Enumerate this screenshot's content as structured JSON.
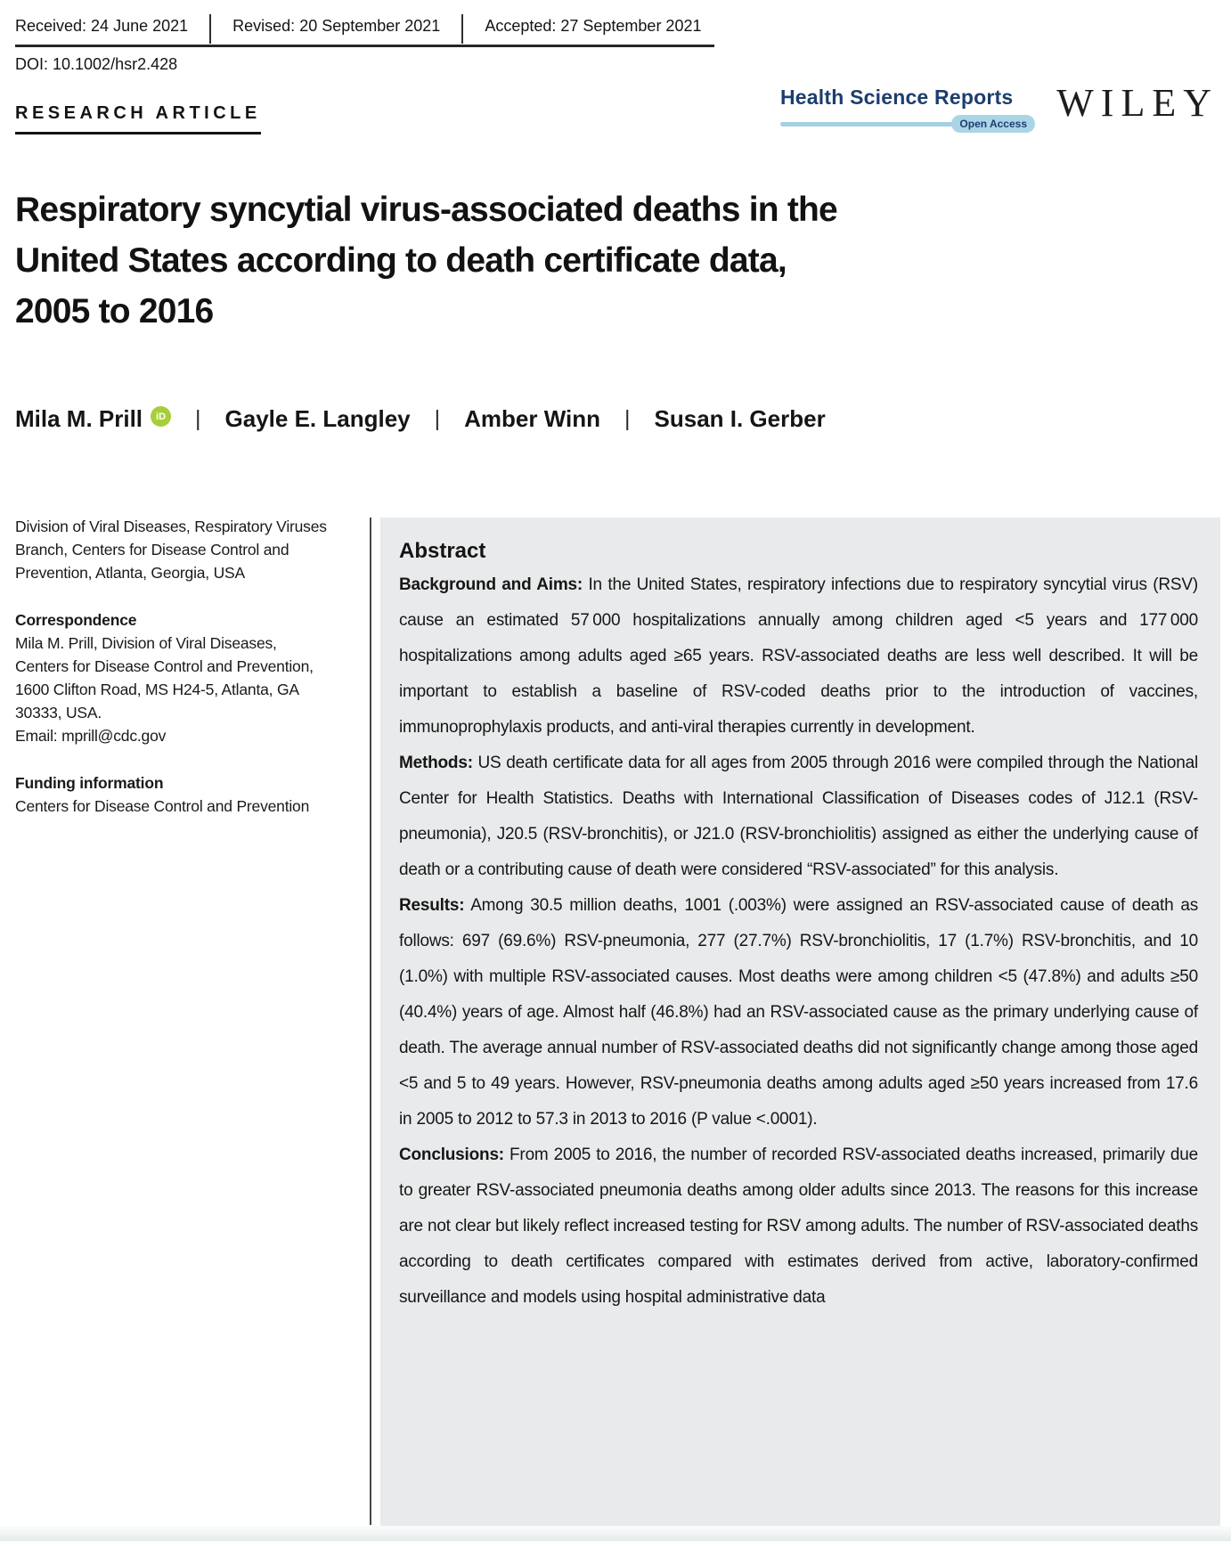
{
  "meta": {
    "dates": [
      "Received: 24 June 2021",
      "Revised: 20 September 2021",
      "Accepted: 27 September 2021"
    ],
    "doi": "DOI: 10.1002/hsr2.428"
  },
  "journal": {
    "name": "Health Science Reports",
    "open_access_label": "Open Access",
    "publisher": "WILEY"
  },
  "article": {
    "kicker": "RESEARCH ARTICLE",
    "title_lines": [
      "Respiratory syncytial virus-associated deaths in the",
      "United States according to death certificate data,",
      "2005 to 2016"
    ],
    "authors": [
      {
        "name": "Mila M. Prill",
        "orcid": true
      },
      {
        "name": "Gayle E. Langley"
      },
      {
        "name": "Amber Winn"
      },
      {
        "name": "Susan I. Gerber"
      }
    ],
    "author_separator": "|",
    "orcid_icon_text": "iD"
  },
  "sidebar": {
    "affiliation": "Division of Viral Diseases, Respiratory Viruses Branch, Centers for Disease Control and Prevention, Atlanta, Georgia, USA",
    "correspondence_heading": "Correspondence",
    "correspondence": "Mila M. Prill, Division of Viral Diseases, Centers for Disease Control and Prevention, 1600 Clifton Road, MS H24-5, Atlanta, GA 30333, USA.",
    "email": "Email: mprill@cdc.gov",
    "funding_heading": "Funding information",
    "funding": "Centers for Disease Control and Prevention"
  },
  "abstract": {
    "heading": "Abstract",
    "paragraphs": [
      {
        "label": "Background and Aims:",
        "text": "In the United States, respiratory infections due to respiratory syncytial virus (RSV) cause an estimated 57 000 hospitalizations annually among children aged <5 years and 177 000 hospitalizations among adults aged ≥65 years. RSV-associated deaths are less well described. It will be important to establish a baseline of RSV-coded deaths prior to the introduction of vaccines, immunoprophylaxis products, and anti-viral therapies currently in development."
      },
      {
        "label": "Methods:",
        "text": "US death certificate data for all ages from 2005 through 2016 were compiled through the National Center for Health Statistics. Deaths with International Classification of Diseases codes of J12.1 (RSV-pneumonia), J20.5 (RSV-bronchitis), or J21.0 (RSV-bronchiolitis) assigned as either the underlying cause of death or a contributing cause of death were considered “RSV-associated” for this analysis."
      },
      {
        "label": "Results:",
        "text": "Among 30.5 million deaths, 1001 (.003%) were assigned an RSV-associated cause of death as follows: 697 (69.6%) RSV-pneumonia, 277 (27.7%) RSV-bronchiolitis, 17 (1.7%) RSV-bronchitis, and 10 (1.0%) with multiple RSV-associated causes. Most deaths were among children <5 (47.8%) and adults ≥50 (40.4%) years of age. Almost half (46.8%) had an RSV-associated cause as the primary underlying cause of death. The average annual number of RSV-associated deaths did not significantly change among those aged <5 and 5 to 49 years. However, RSV-pneumonia deaths among adults aged ≥50 years increased from 17.6 in 2005 to 2012 to 57.3 in 2013 to 2016 (P value <.0001)."
      },
      {
        "label": "Conclusions:",
        "text": "From 2005 to 2016, the number of recorded RSV-associated deaths increased, primarily due to greater RSV-associated pneumonia deaths among older adults since 2013. The reasons for this increase are not clear but likely reflect increased testing for RSV among adults. The number of RSV-associated deaths according to death certificates compared with estimates derived from active, laboratory-confirmed surveillance and models using hospital administrative data"
      }
    ]
  },
  "colors": {
    "journal_navy": "#1c3e6e",
    "journal_light_blue": "#a6cfe3",
    "open_access_pill_bg": "#aad5e7",
    "orcid_green": "#a6ce39",
    "abstract_bg": "#e9eaeb",
    "text": "#1a1a1a"
  }
}
